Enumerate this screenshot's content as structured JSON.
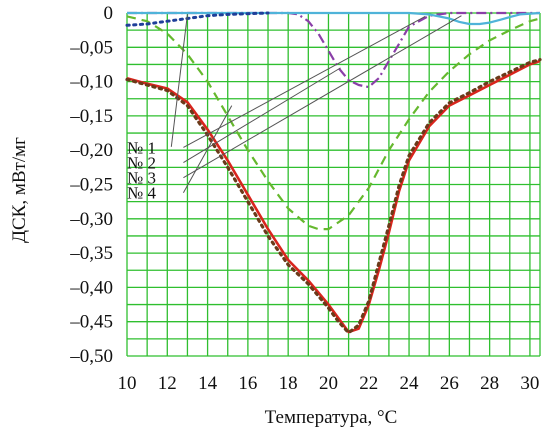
{
  "chart_data": {
    "type": "line",
    "xlabel": "Температура, °C",
    "ylabel": "ДСК, мВт/мг",
    "xlim": [
      10,
      30.5
    ],
    "ylim": [
      -0.5,
      0
    ],
    "xticks": [
      10,
      12,
      14,
      16,
      18,
      20,
      22,
      24,
      26,
      28,
      30
    ],
    "yticks": [
      0,
      -0.05,
      -0.1,
      -0.15,
      -0.2,
      -0.25,
      -0.3,
      -0.35,
      -0.4,
      -0.45,
      -0.5
    ],
    "xtick_labels": [
      "10",
      "12",
      "14",
      "16",
      "18",
      "20",
      "22",
      "24",
      "26",
      "28",
      "30"
    ],
    "ytick_labels": [
      "0",
      "–0,05",
      "–0,10",
      "–0,15",
      "–0,20",
      "–0,25",
      "–0,30",
      "–0,35",
      "–0,40",
      "–0,45",
      "–0,50"
    ],
    "grid": true,
    "series": [
      {
        "name": "№ 1",
        "color": "#8a3fa8",
        "style": "dashdot",
        "x": [
          10,
          18,
          18.5,
          19,
          19.5,
          20,
          20.5,
          21,
          21.5,
          22,
          22.5,
          23,
          23.5,
          24,
          25,
          26,
          28,
          30.5
        ],
        "y": [
          0,
          0,
          -0.002,
          -0.012,
          -0.03,
          -0.055,
          -0.08,
          -0.098,
          -0.105,
          -0.108,
          -0.095,
          -0.07,
          -0.045,
          -0.02,
          -0.004,
          0,
          0,
          0
        ]
      },
      {
        "name": "№ 2",
        "color": "#4fb3d9",
        "style": "solid",
        "x": [
          10,
          24,
          25,
          26,
          26.5,
          27,
          27.5,
          28,
          28.5,
          29,
          29.5,
          30.5
        ],
        "y": [
          0,
          0,
          -0.002,
          -0.008,
          -0.013,
          -0.016,
          -0.016,
          -0.014,
          -0.01,
          -0.006,
          -0.002,
          0
        ]
      },
      {
        "name": "№ 3",
        "color": "#66b82e",
        "style": "dash",
        "x": [
          10,
          11,
          12,
          13,
          14,
          15,
          16,
          17,
          18,
          19,
          19.5,
          20,
          21,
          22,
          23,
          24,
          25,
          26,
          27,
          28,
          29,
          30,
          30.5
        ],
        "y": [
          -0.005,
          -0.012,
          -0.03,
          -0.06,
          -0.1,
          -0.15,
          -0.2,
          -0.245,
          -0.285,
          -0.31,
          -0.315,
          -0.315,
          -0.295,
          -0.255,
          -0.2,
          -0.155,
          -0.115,
          -0.085,
          -0.06,
          -0.04,
          -0.025,
          -0.012,
          -0.008
        ]
      },
      {
        "name": "№ 4",
        "color": "#d9251d",
        "style": "solid",
        "x": [
          10,
          11,
          12,
          13,
          14,
          15,
          16,
          17,
          18,
          19,
          20,
          20.5,
          21,
          21.5,
          22,
          22.5,
          23,
          23.5,
          24,
          25,
          26,
          27,
          28,
          29,
          30,
          30.5
        ],
        "y": [
          -0.095,
          -0.103,
          -0.11,
          -0.13,
          -0.17,
          -0.215,
          -0.265,
          -0.315,
          -0.36,
          -0.39,
          -0.425,
          -0.445,
          -0.465,
          -0.46,
          -0.425,
          -0.375,
          -0.32,
          -0.26,
          -0.215,
          -0.165,
          -0.135,
          -0.12,
          -0.105,
          -0.09,
          -0.075,
          -0.07
        ]
      },
      {
        "name": "fit-blue-dotted",
        "color": "#1f3f99",
        "style": "dot",
        "x": [
          10,
          11,
          12,
          13,
          14,
          15,
          16,
          17
        ],
        "y": [
          -0.018,
          -0.016,
          -0.012,
          -0.008,
          -0.004,
          -0.002,
          -0.001,
          0
        ]
      },
      {
        "name": "fit-brown-dotted",
        "color": "#6b3a1a",
        "style": "dot",
        "x": [
          10,
          11,
          12,
          13,
          14,
          15,
          16,
          17,
          18,
          19,
          20,
          20.5,
          21,
          21.5,
          22,
          22.5,
          23,
          23.5,
          24,
          25,
          26,
          27,
          28,
          29,
          30,
          30.5
        ],
        "y": [
          -0.097,
          -0.105,
          -0.113,
          -0.135,
          -0.178,
          -0.225,
          -0.275,
          -0.325,
          -0.367,
          -0.395,
          -0.43,
          -0.45,
          -0.466,
          -0.455,
          -0.42,
          -0.365,
          -0.31,
          -0.252,
          -0.208,
          -0.16,
          -0.131,
          -0.116,
          -0.1,
          -0.086,
          -0.072,
          -0.068
        ]
      }
    ],
    "callouts": [
      {
        "label": "№ 1",
        "from": [
          12.8,
          -0.196
        ],
        "to": [
          24.8,
          -0.005
        ]
      },
      {
        "label": "№ 2",
        "from": [
          12.8,
          -0.218
        ],
        "to": [
          20.6,
          -0.08
        ]
      },
      {
        "label": "№ 3",
        "from": [
          12.8,
          -0.24
        ],
        "to": [
          26.6,
          -0.004
        ]
      },
      {
        "label": "№ 4",
        "from": [
          12.8,
          -0.262
        ],
        "to": [
          15.2,
          -0.135
        ]
      },
      {
        "label": "",
        "from": [
          12.2,
          -0.195
        ],
        "to": [
          13.0,
          -0.002
        ]
      }
    ]
  }
}
